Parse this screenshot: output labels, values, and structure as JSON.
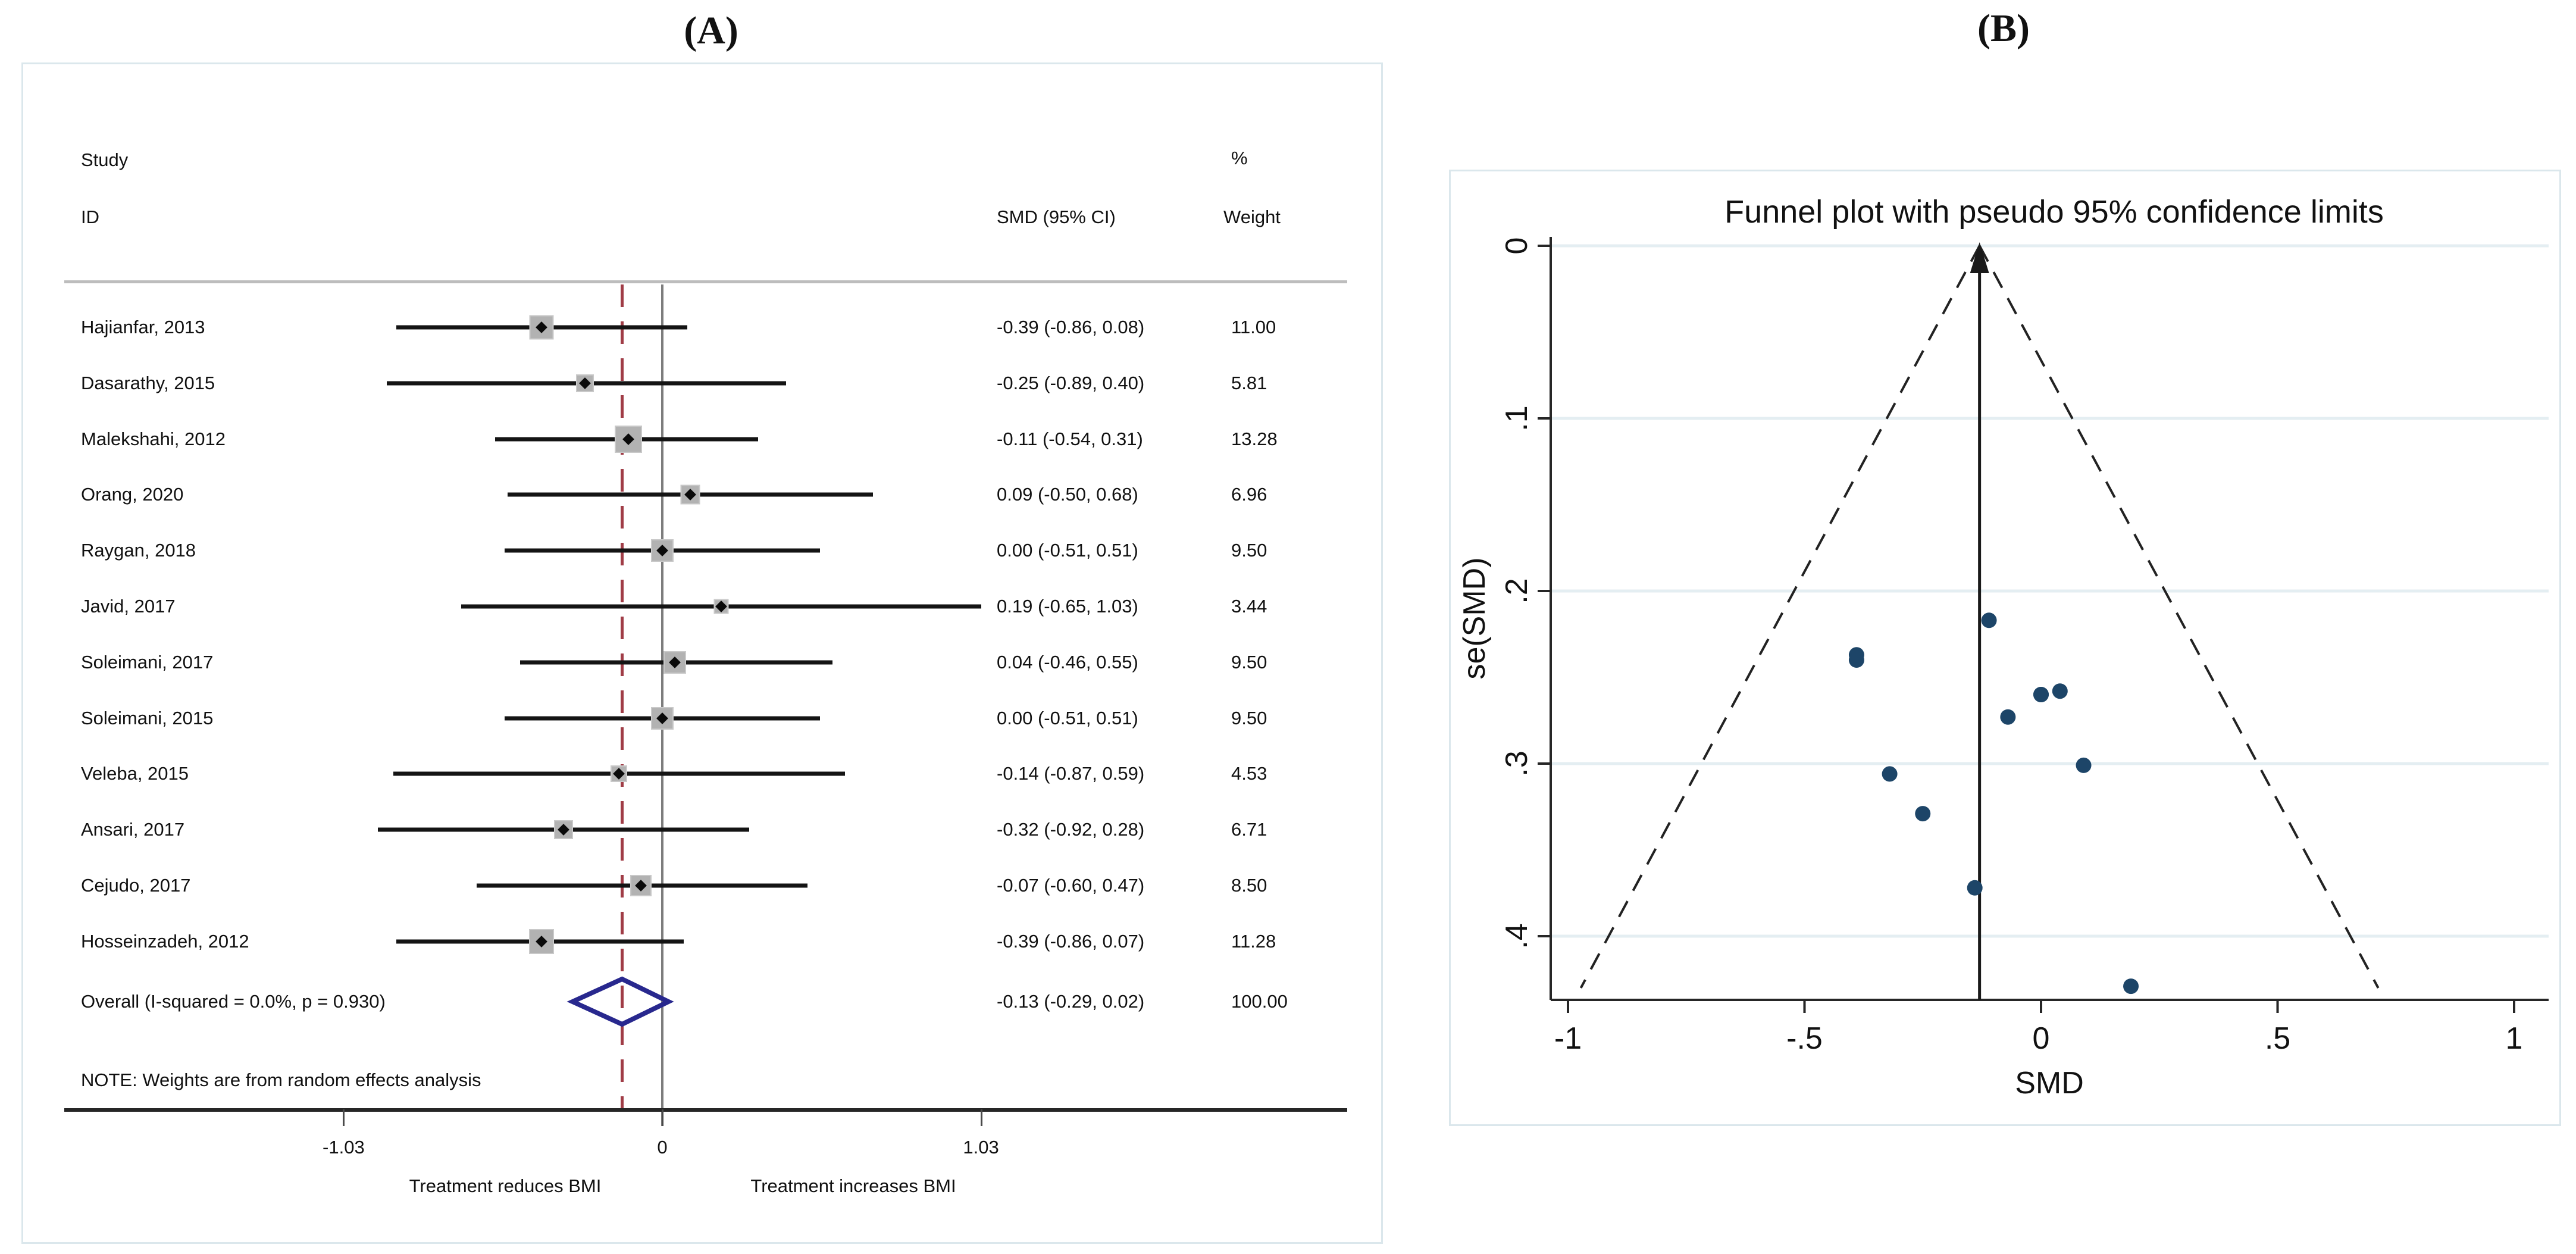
{
  "panels": {
    "a_label": "(A)",
    "b_label": "(B)"
  },
  "colors": {
    "panel_border": "#dbe7ec",
    "ci_line": "#141414",
    "square": "#b2b2b2",
    "square_edge": "#c9c9c9",
    "marker": "#0a0a0a",
    "zero_line": "#7d7d7d",
    "overall_dashed_line": "#a03c46",
    "diamond": "#28288e",
    "funnel_dot": "#1d4568",
    "funnel_grid": "#e4eef2",
    "axis": "#262626",
    "text": "#111111"
  },
  "chart_data": [
    {
      "type": "forest",
      "headers": {
        "study_top": "Study",
        "study_bottom": "ID",
        "effect": "SMD (95% CI)",
        "weight_top": "%",
        "weight_bottom": "Weight"
      },
      "studies": [
        {
          "id": "Hajianfar, 2013",
          "smd": -0.39,
          "ci_low": -0.86,
          "ci_high": 0.08,
          "label": "-0.39 (-0.86, 0.08)",
          "weight": 11.0,
          "weight_label": "11.00"
        },
        {
          "id": "Dasarathy, 2015",
          "smd": -0.25,
          "ci_low": -0.89,
          "ci_high": 0.4,
          "label": "-0.25 (-0.89, 0.40)",
          "weight": 5.81,
          "weight_label": "5.81"
        },
        {
          "id": "Malekshahi, 2012",
          "smd": -0.11,
          "ci_low": -0.54,
          "ci_high": 0.31,
          "label": "-0.11 (-0.54, 0.31)",
          "weight": 13.28,
          "weight_label": "13.28"
        },
        {
          "id": "Orang, 2020",
          "smd": 0.09,
          "ci_low": -0.5,
          "ci_high": 0.68,
          "label": "0.09 (-0.50, 0.68)",
          "weight": 6.96,
          "weight_label": "6.96"
        },
        {
          "id": "Raygan, 2018",
          "smd": 0.0,
          "ci_low": -0.51,
          "ci_high": 0.51,
          "label": "0.00 (-0.51, 0.51)",
          "weight": 9.5,
          "weight_label": "9.50"
        },
        {
          "id": "Javid, 2017",
          "smd": 0.19,
          "ci_low": -0.65,
          "ci_high": 1.03,
          "label": "0.19 (-0.65, 1.03)",
          "weight": 3.44,
          "weight_label": "3.44"
        },
        {
          "id": "Soleimani, 2017",
          "smd": 0.04,
          "ci_low": -0.46,
          "ci_high": 0.55,
          "label": "0.04 (-0.46, 0.55)",
          "weight": 9.5,
          "weight_label": "9.50"
        },
        {
          "id": "Soleimani, 2015",
          "smd": 0.0,
          "ci_low": -0.51,
          "ci_high": 0.51,
          "label": "0.00 (-0.51, 0.51)",
          "weight": 9.5,
          "weight_label": "9.50"
        },
        {
          "id": "Veleba, 2015",
          "smd": -0.14,
          "ci_low": -0.87,
          "ci_high": 0.59,
          "label": "-0.14 (-0.87, 0.59)",
          "weight": 4.53,
          "weight_label": "4.53"
        },
        {
          "id": "Ansari, 2017",
          "smd": -0.32,
          "ci_low": -0.92,
          "ci_high": 0.28,
          "label": "-0.32 (-0.92, 0.28)",
          "weight": 6.71,
          "weight_label": "6.71"
        },
        {
          "id": "Cejudo, 2017",
          "smd": -0.07,
          "ci_low": -0.6,
          "ci_high": 0.47,
          "label": "-0.07 (-0.60, 0.47)",
          "weight": 8.5,
          "weight_label": "8.50"
        },
        {
          "id": "Hosseinzadeh, 2012",
          "smd": -0.39,
          "ci_low": -0.86,
          "ci_high": 0.07,
          "label": "-0.39 (-0.86, 0.07)",
          "weight": 11.28,
          "weight_label": "11.28"
        }
      ],
      "overall": {
        "id": "Overall  (I-squared = 0.0%, p = 0.930)",
        "smd": -0.13,
        "ci_low": -0.29,
        "ci_high": 0.02,
        "label": "-0.13 (-0.29, 0.02)",
        "weight_label": "100.00"
      },
      "note": "NOTE: Weights are from random effects analysis",
      "x_ticks": [
        {
          "value": -1.03,
          "label": "-1.03"
        },
        {
          "value": 0,
          "label": "0"
        },
        {
          "value": 1.03,
          "label": "1.03"
        }
      ],
      "captions": {
        "left": "Treatment reduces BMI",
        "right": "Treatment increases BMI"
      },
      "zero_line_value": 0,
      "overall_line_value": -0.13,
      "xlim": [
        -1.95,
        2.15
      ]
    },
    {
      "type": "scatter",
      "title": "Funnel plot with pseudo 95% confidence limits",
      "xlabel": "SMD",
      "ylabel": "se(SMD)",
      "x_ticks": [
        {
          "value": -1,
          "label": "-1"
        },
        {
          "value": -0.5,
          "label": "-.5"
        },
        {
          "value": 0,
          "label": "0"
        },
        {
          "value": 0.5,
          "label": ".5"
        },
        {
          "value": 1,
          "label": "1"
        }
      ],
      "y_ticks": [
        {
          "value": 0,
          "label": "0"
        },
        {
          "value": 0.1,
          "label": ".1"
        },
        {
          "value": 0.2,
          "label": ".2"
        },
        {
          "value": 0.3,
          "label": ".3"
        },
        {
          "value": 0.4,
          "label": ".4"
        }
      ],
      "xlim": [
        -1.04,
        1.07
      ],
      "ylim": [
        0,
        0.437
      ],
      "grid": true,
      "center_value": -0.13,
      "ci_multiplier": 1.96,
      "funnel_bottom_se": 0.43,
      "points": [
        {
          "x": -0.39,
          "y": 0.24
        },
        {
          "x": -0.25,
          "y": 0.329
        },
        {
          "x": -0.11,
          "y": 0.217
        },
        {
          "x": 0.09,
          "y": 0.301
        },
        {
          "x": 0.0,
          "y": 0.26
        },
        {
          "x": 0.19,
          "y": 0.429
        },
        {
          "x": 0.04,
          "y": 0.258
        },
        {
          "x": 0.0,
          "y": 0.26
        },
        {
          "x": -0.14,
          "y": 0.372
        },
        {
          "x": -0.32,
          "y": 0.306
        },
        {
          "x": -0.07,
          "y": 0.273
        },
        {
          "x": -0.39,
          "y": 0.237
        }
      ]
    }
  ]
}
